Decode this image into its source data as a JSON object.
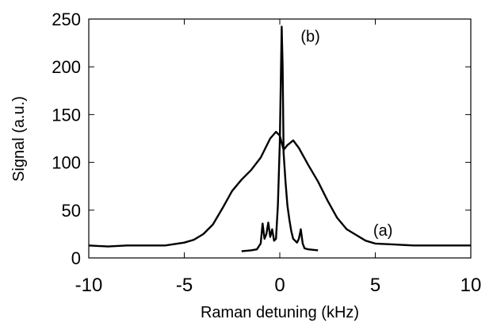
{
  "chart_data": {
    "type": "line",
    "title": "",
    "xlabel": "Raman detuning (kHz)",
    "ylabel": "Signal (a.u.)",
    "xlim": [
      -10,
      10
    ],
    "ylim": [
      0,
      250
    ],
    "x_ticks": [
      "-10",
      "-5",
      "0",
      "5",
      "10"
    ],
    "y_ticks": [
      "0",
      "50",
      "100",
      "150",
      "200",
      "250"
    ],
    "grid": false,
    "legend": "none",
    "line_color": "#000000",
    "annotations": [
      {
        "text": "(a)",
        "x": 5.4,
        "y": 29
      },
      {
        "text": "(b)",
        "x": 1.6,
        "y": 232
      }
    ],
    "series": [
      {
        "x": [
          -10,
          -9,
          -8,
          -7,
          -6,
          -5,
          -4.5,
          -4,
          -3.5,
          -3,
          -2.5,
          -2,
          -1.5,
          -1,
          -0.5,
          -0.2,
          0,
          0.2,
          0.4,
          0.7,
          1,
          1.5,
          2,
          2.5,
          3,
          3.5,
          4,
          4.5,
          5,
          6,
          7,
          8,
          9,
          10
        ],
        "y": [
          13,
          12,
          13,
          13,
          13,
          16,
          19,
          25,
          35,
          52,
          70,
          82,
          92,
          105,
          125,
          132,
          128,
          113,
          118,
          123,
          115,
          97,
          80,
          60,
          42,
          30,
          24,
          18,
          15,
          14,
          13,
          13,
          13,
          13
        ]
      },
      {
        "x": [
          -2,
          -1.5,
          -1.2,
          -1,
          -0.9,
          -0.8,
          -0.7,
          -0.6,
          -0.5,
          -0.4,
          -0.3,
          -0.2,
          -0.1,
          0,
          0.1,
          0.15,
          0.2,
          0.25,
          0.3,
          0.4,
          0.5,
          0.6,
          0.7,
          0.8,
          0.9,
          1,
          1.1,
          1.2,
          1.3,
          1.5,
          2
        ],
        "y": [
          7,
          8,
          9,
          15,
          36,
          20,
          25,
          37,
          22,
          30,
          18,
          20,
          55,
          120,
          242,
          200,
          110,
          95,
          80,
          55,
          40,
          28,
          20,
          18,
          16,
          20,
          30,
          15,
          10,
          9,
          8
        ]
      }
    ]
  }
}
